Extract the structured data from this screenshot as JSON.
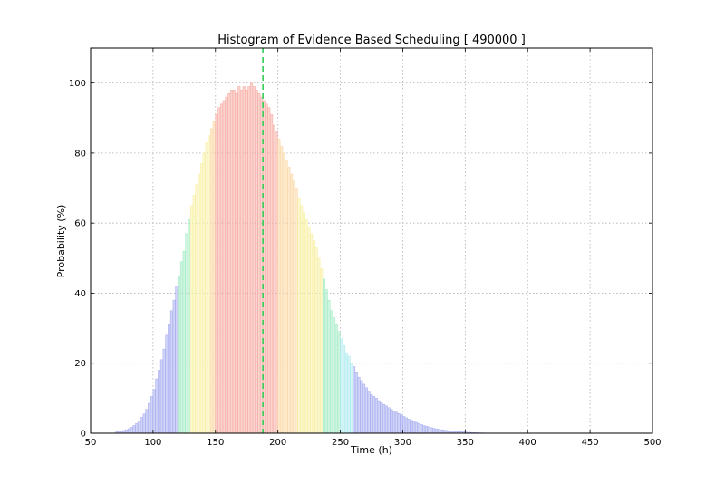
{
  "chart_data": {
    "type": "bar",
    "title": "Histogram of Evidence Based Scheduling [ 490000 ]",
    "xlabel": "Time (h)",
    "ylabel": "Probability (%)",
    "xlim": [
      50,
      500
    ],
    "ylim": [
      0,
      110
    ],
    "xticks": [
      "50",
      "100",
      "150",
      "200",
      "250",
      "300",
      "350",
      "400",
      "450",
      "500"
    ],
    "yticks": [
      "0",
      "20",
      "40",
      "60",
      "80",
      "100"
    ],
    "grid": true,
    "bin_width_h": 2,
    "x": [
      70,
      72,
      74,
      76,
      78,
      80,
      82,
      84,
      86,
      88,
      90,
      92,
      94,
      96,
      98,
      100,
      102,
      104,
      106,
      108,
      110,
      112,
      114,
      116,
      118,
      120,
      122,
      124,
      126,
      128,
      130,
      132,
      134,
      136,
      138,
      140,
      142,
      144,
      146,
      148,
      150,
      152,
      154,
      156,
      158,
      160,
      162,
      164,
      166,
      168,
      170,
      172,
      174,
      176,
      178,
      180,
      182,
      184,
      186,
      188,
      190,
      192,
      194,
      196,
      198,
      200,
      202,
      204,
      206,
      208,
      210,
      212,
      214,
      216,
      218,
      220,
      222,
      224,
      226,
      228,
      230,
      232,
      234,
      236,
      238,
      240,
      242,
      244,
      246,
      248,
      250,
      252,
      254,
      256,
      258,
      260,
      262,
      264,
      266,
      268,
      270,
      272,
      274,
      276,
      278,
      280,
      282,
      284,
      286,
      288,
      290,
      292,
      294,
      296,
      298,
      300,
      302,
      304,
      306,
      308,
      310,
      312,
      314,
      316,
      318,
      320,
      322,
      324,
      326,
      328,
      330,
      332,
      334,
      336,
      338,
      340,
      342,
      344,
      346,
      348,
      350,
      352,
      354,
      356,
      358,
      360,
      362,
      364,
      366,
      368
    ],
    "values": [
      0.4,
      0.5,
      0.6,
      0.8,
      1.0,
      1.3,
      1.7,
      2.2,
      2.8,
      3.5,
      4.5,
      5.5,
      6.8,
      8.5,
      10.5,
      12.5,
      15.5,
      18,
      21,
      24,
      28,
      31,
      35,
      38,
      42,
      45,
      49,
      52,
      57,
      61,
      65,
      68,
      71,
      74,
      77,
      80,
      83,
      85,
      87,
      89,
      91,
      93,
      94,
      95,
      96,
      97,
      98,
      98,
      97,
      99,
      98,
      99,
      98,
      99,
      100,
      99,
      98,
      97,
      96,
      95,
      94,
      93,
      91,
      88,
      86,
      84,
      82,
      80,
      78,
      76,
      74,
      72,
      70,
      67,
      65,
      63,
      61,
      59,
      57,
      55,
      53,
      50,
      47,
      44,
      41,
      38,
      35,
      33,
      31,
      29,
      27,
      25,
      23,
      22,
      20,
      19,
      17.5,
      16,
      15,
      14,
      13,
      12,
      11,
      10.5,
      10,
      9.3,
      8.7,
      8.2,
      7.8,
      7.3,
      6.8,
      6.4,
      6,
      5.6,
      5.2,
      4.8,
      4.4,
      4,
      3.7,
      3.4,
      3.1,
      2.8,
      2.5,
      2.2,
      2,
      1.8,
      1.6,
      1.4,
      1.2,
      1.1,
      1,
      0.9,
      0.8,
      0.7,
      0.6,
      0.55,
      0.5,
      0.45,
      0.4,
      0.35,
      0.3,
      0.25,
      0.2,
      0.18,
      0.15,
      0.12,
      0.1,
      0.08,
      0.06,
      0.05
    ],
    "marker_line": {
      "x": 188,
      "style": "dashed",
      "color": "#33cc55"
    },
    "colors": {
      "bands": [
        {
          "from": 70,
          "to": 120,
          "color": "#aab0f0"
        },
        {
          "from": 120,
          "to": 130,
          "color": "#a8ecc8"
        },
        {
          "from": 130,
          "to": 145,
          "color": "#f8f0a8"
        },
        {
          "from": 145,
          "to": 150,
          "color": "#fbd8a8"
        },
        {
          "from": 150,
          "to": 200,
          "color": "#f7b0a8"
        },
        {
          "from": 200,
          "to": 215,
          "color": "#fbd8a8"
        },
        {
          "from": 215,
          "to": 235,
          "color": "#f8f0a8"
        },
        {
          "from": 235,
          "to": 250,
          "color": "#a8ecc8"
        },
        {
          "from": 250,
          "to": 260,
          "color": "#b0ecf0"
        },
        {
          "from": 260,
          "to": 370,
          "color": "#aab0f0"
        }
      ]
    }
  }
}
